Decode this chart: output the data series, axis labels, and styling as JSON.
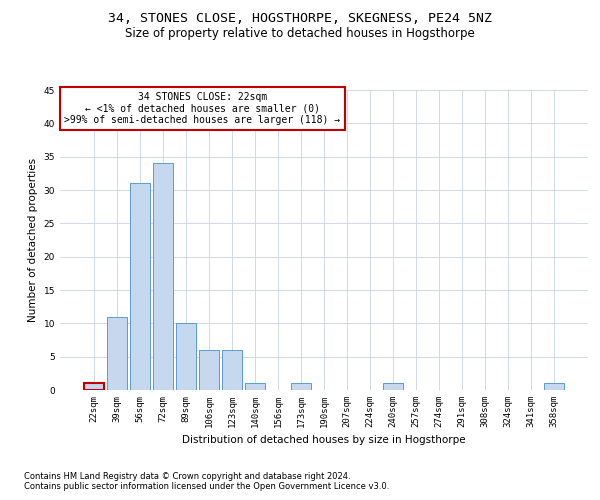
{
  "title1": "34, STONES CLOSE, HOGSTHORPE, SKEGNESS, PE24 5NZ",
  "title2": "Size of property relative to detached houses in Hogsthorpe",
  "xlabel": "Distribution of detached houses by size in Hogsthorpe",
  "ylabel": "Number of detached properties",
  "bin_labels": [
    "22sqm",
    "39sqm",
    "56sqm",
    "72sqm",
    "89sqm",
    "106sqm",
    "123sqm",
    "140sqm",
    "156sqm",
    "173sqm",
    "190sqm",
    "207sqm",
    "224sqm",
    "240sqm",
    "257sqm",
    "274sqm",
    "291sqm",
    "308sqm",
    "324sqm",
    "341sqm",
    "358sqm"
  ],
  "bin_values": [
    1,
    11,
    31,
    34,
    10,
    6,
    6,
    1,
    0,
    1,
    0,
    0,
    0,
    1,
    0,
    0,
    0,
    0,
    0,
    0,
    1
  ],
  "bar_color": "#c5d8ed",
  "bar_edge_color": "#5b9bd5",
  "highlight_bin": 0,
  "highlight_color": "#c00000",
  "annotation_title": "34 STONES CLOSE: 22sqm",
  "annotation_line1": "← <1% of detached houses are smaller (0)",
  "annotation_line2": ">99% of semi-detached houses are larger (118) →",
  "annotation_box_color": "#c00000",
  "ylim": [
    0,
    45
  ],
  "yticks": [
    0,
    5,
    10,
    15,
    20,
    25,
    30,
    35,
    40,
    45
  ],
  "footer1": "Contains HM Land Registry data © Crown copyright and database right 2024.",
  "footer2": "Contains public sector information licensed under the Open Government Licence v3.0.",
  "bg_color": "#ffffff",
  "grid_color": "#c8d4e3",
  "title1_fontsize": 9.5,
  "title2_fontsize": 8.5,
  "axis_label_fontsize": 7.5,
  "tick_fontsize": 6.5,
  "annotation_fontsize": 7,
  "footer_fontsize": 6.0
}
